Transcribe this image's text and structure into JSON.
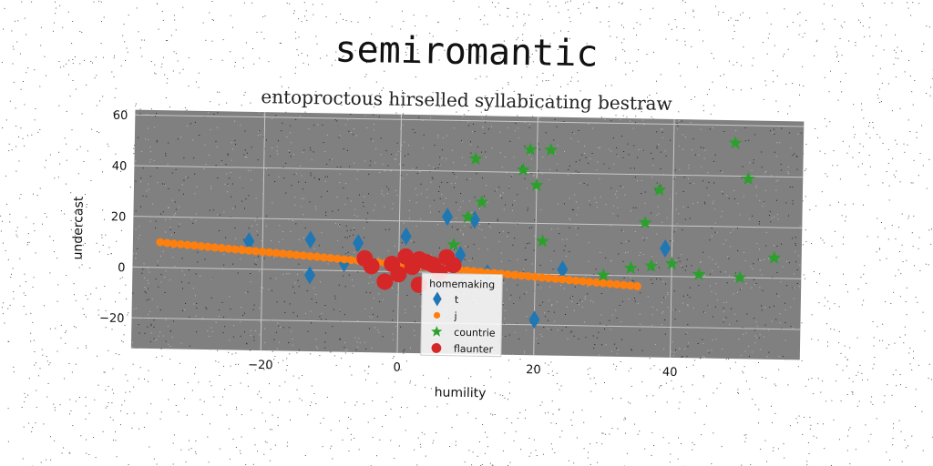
{
  "chart_data": {
    "type": "scatter",
    "title": "semiromantic",
    "subtitle": "entoproctous hirselled syllabicating bestraw",
    "xlabel": "humility",
    "ylabel": "undercast",
    "xlim": [
      -39,
      59
    ],
    "ylim": [
      -32,
      62
    ],
    "xticks": [
      -20,
      0,
      20,
      40
    ],
    "yticks": [
      -20,
      0,
      20,
      40,
      60
    ],
    "grid": true,
    "legend": {
      "title": "homemaking",
      "position": "lower-center"
    },
    "series": [
      {
        "name": "t",
        "marker": "diamond",
        "color": "#1f77b4",
        "points": [
          [
            -22,
            11
          ],
          [
            -13,
            12
          ],
          [
            -13,
            -2
          ],
          [
            -8,
            3
          ],
          [
            -6,
            11
          ],
          [
            -2,
            -4
          ],
          [
            1,
            14
          ],
          [
            7,
            22
          ],
          [
            9,
            7
          ],
          [
            11,
            21
          ],
          [
            13,
            0
          ],
          [
            20,
            -18
          ],
          [
            24,
            2
          ],
          [
            39,
            11
          ]
        ]
      },
      {
        "name": "j",
        "marker": "circle",
        "color": "#ff7f0e",
        "points": [
          [
            -35,
            10
          ],
          [
            -34,
            9.7
          ],
          [
            -33,
            9.5
          ],
          [
            -32,
            9.3
          ],
          [
            -31,
            9.1
          ],
          [
            -30,
            8.9
          ],
          [
            -29,
            8.7
          ],
          [
            -28,
            8.5
          ],
          [
            -27,
            8.3
          ],
          [
            -26,
            8.1
          ],
          [
            -25,
            7.9
          ],
          [
            -24,
            7.7
          ],
          [
            -23,
            7.5
          ],
          [
            -22,
            7.3
          ],
          [
            -21,
            7.1
          ],
          [
            -20,
            6.9
          ],
          [
            -19,
            6.7
          ],
          [
            -18,
            6.5
          ],
          [
            -17,
            6.3
          ],
          [
            -16,
            6.1
          ],
          [
            -15,
            5.9
          ],
          [
            -14,
            5.7
          ],
          [
            -13,
            5.5
          ],
          [
            -12,
            5.3
          ],
          [
            -11,
            5.1
          ],
          [
            -10,
            4.9
          ],
          [
            -9,
            4.7
          ],
          [
            -8,
            4.5
          ],
          [
            -7,
            4.3
          ],
          [
            -6,
            4.1
          ],
          [
            -5,
            3.9
          ],
          [
            -4,
            3.7
          ],
          [
            -3,
            3.5
          ],
          [
            -2,
            3.3
          ],
          [
            -1,
            3.1
          ],
          [
            0,
            2.9
          ],
          [
            1,
            2.7
          ],
          [
            2,
            2.5
          ],
          [
            3,
            2.3
          ],
          [
            4,
            2.1
          ],
          [
            5,
            1.9
          ],
          [
            6,
            1.7
          ],
          [
            7,
            1.5
          ],
          [
            8,
            1.3
          ],
          [
            9,
            1.1
          ],
          [
            10,
            0.9
          ],
          [
            11,
            0.7
          ],
          [
            12,
            0.5
          ],
          [
            13,
            0.3
          ],
          [
            14,
            0.1
          ],
          [
            15,
            -0.1
          ],
          [
            16,
            -0.3
          ],
          [
            17,
            -0.5
          ],
          [
            18,
            -0.7
          ],
          [
            19,
            -0.9
          ],
          [
            20,
            -1.1
          ],
          [
            21,
            -1.3
          ],
          [
            22,
            -1.5
          ],
          [
            23,
            -1.7
          ],
          [
            24,
            -1.9
          ],
          [
            25,
            -2.1
          ],
          [
            26,
            -2.3
          ],
          [
            27,
            -2.5
          ],
          [
            28,
            -2.7
          ],
          [
            29,
            -2.9
          ],
          [
            30,
            -3.1
          ],
          [
            31,
            -3.3
          ],
          [
            32,
            -3.5
          ],
          [
            33,
            -3.7
          ],
          [
            34,
            -3.9
          ],
          [
            35,
            -4.1
          ]
        ]
      },
      {
        "name": "countrie",
        "marker": "star",
        "color": "#2ca02c",
        "points": [
          [
            8,
            11
          ],
          [
            10,
            22
          ],
          [
            11,
            45
          ],
          [
            12,
            28
          ],
          [
            18,
            41
          ],
          [
            19,
            49
          ],
          [
            20,
            35
          ],
          [
            21,
            13
          ],
          [
            22,
            49
          ],
          [
            30,
            0
          ],
          [
            34,
            3
          ],
          [
            36,
            21
          ],
          [
            37,
            4
          ],
          [
            38,
            34
          ],
          [
            40,
            5
          ],
          [
            44,
            1
          ],
          [
            49,
            53
          ],
          [
            50,
            0
          ],
          [
            51,
            39
          ],
          [
            55,
            8
          ]
        ]
      },
      {
        "name": "flaunter",
        "marker": "circle-large",
        "color": "#d62728",
        "points": [
          [
            -5,
            5
          ],
          [
            -4,
            2
          ],
          [
            -2,
            -4
          ],
          [
            -1,
            3
          ],
          [
            0,
            -1
          ],
          [
            1,
            6
          ],
          [
            2,
            2
          ],
          [
            3,
            5
          ],
          [
            3,
            -5
          ],
          [
            4,
            4
          ],
          [
            5,
            3
          ],
          [
            6,
            0
          ],
          [
            7,
            6
          ],
          [
            8,
            3
          ]
        ]
      }
    ]
  }
}
